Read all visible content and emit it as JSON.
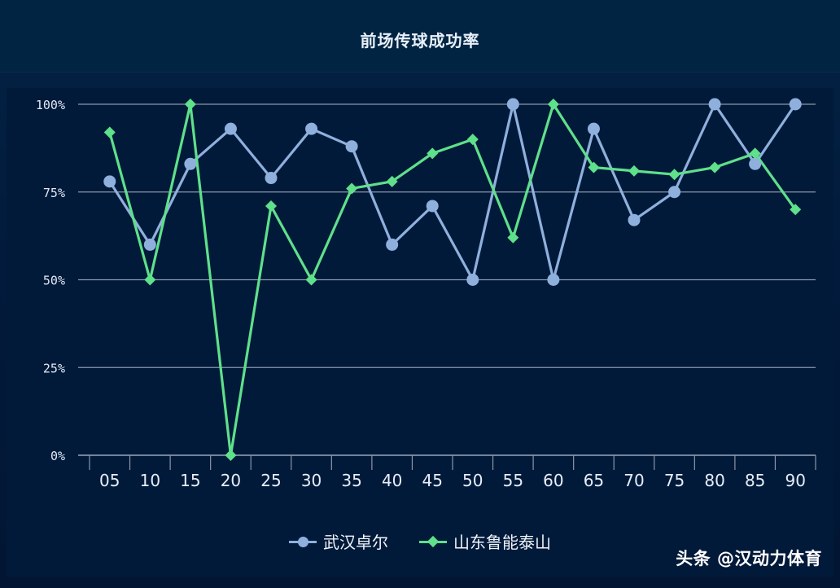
{
  "chart_data": {
    "type": "line",
    "title": "前场传球成功率",
    "categories": [
      "05",
      "10",
      "15",
      "20",
      "25",
      "30",
      "35",
      "40",
      "45",
      "50",
      "55",
      "60",
      "65",
      "70",
      "75",
      "80",
      "85",
      "90"
    ],
    "y_ticks": [
      "0%",
      "25%",
      "50%",
      "75%",
      "100%"
    ],
    "ylim": [
      0,
      100
    ],
    "grid": true,
    "legend_position": "bottom-center",
    "series": [
      {
        "name": "武汉卓尔",
        "color": "#8fb0dc",
        "marker": "circle",
        "values": [
          78,
          60,
          83,
          93,
          79,
          93,
          88,
          60,
          71,
          50,
          100,
          50,
          93,
          67,
          75,
          100,
          83,
          100
        ]
      },
      {
        "name": "山东鲁能泰山",
        "color": "#5fe08a",
        "marker": "diamond",
        "values": [
          92,
          50,
          100,
          0,
          71,
          50,
          76,
          78,
          86,
          90,
          62,
          100,
          82,
          81,
          80,
          82,
          86,
          70
        ]
      }
    ]
  },
  "watermark": "头条 @汉动力体育"
}
